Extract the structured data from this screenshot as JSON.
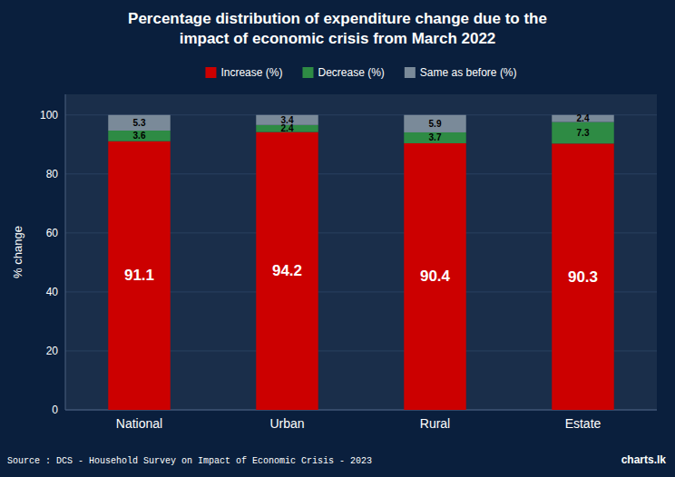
{
  "chart_data": {
    "type": "bar",
    "title": [
      "Percentage distribution of expenditure change due to the",
      "impact of economic crisis from March 2022"
    ],
    "categories": [
      "National",
      "Urban",
      "Rural",
      "Estate"
    ],
    "series": [
      {
        "name": "Increase (%)",
        "color": "#cc0000",
        "values": [
          91.1,
          94.2,
          90.4,
          90.3
        ]
      },
      {
        "name": "Decrease (%)",
        "color": "#2e8b44",
        "values": [
          3.6,
          2.4,
          3.7,
          7.3
        ]
      },
      {
        "name": "Same as before (%)",
        "color": "#7a8a99",
        "values": [
          5.3,
          3.4,
          5.9,
          2.4
        ]
      }
    ],
    "stacked": true,
    "data_labels": true,
    "ylabel": "% change",
    "ylim": [
      0,
      107
    ],
    "yticks": [
      0,
      20,
      40,
      60,
      80,
      100
    ],
    "grid": true,
    "legend": "top",
    "source": "Source : DCS - Household Survey on Impact of Economic Crisis -  2023",
    "annotations": [
      "charts.lk"
    ]
  }
}
